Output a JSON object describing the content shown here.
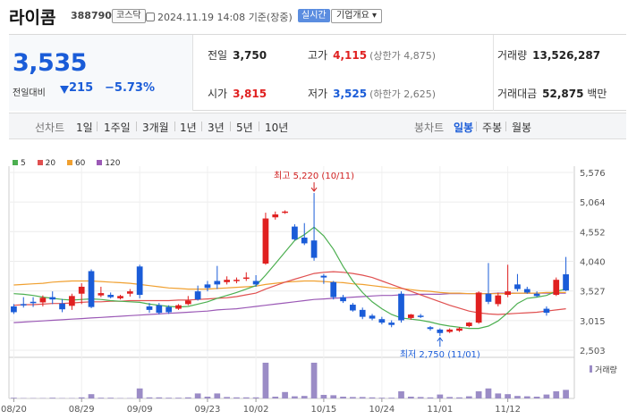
{
  "header": {
    "title": "라이콤",
    "code": "388790",
    "market": "코스닥",
    "datetime": "2024.11.19 14:08",
    "basis": "기준(장중)",
    "realtime_label": "실시간",
    "overview_label": "기업개요 ▾"
  },
  "quote": {
    "price": "3,535",
    "change_label": "전일대비",
    "change": "215",
    "change_rate": "−5.73%",
    "prev_close_label": "전일",
    "prev_close": "3,750",
    "high_label": "고가",
    "high": "4,115",
    "upper_limit": "(상한가 4,875)",
    "volume_label": "거래량",
    "volume": "13,526,287",
    "open_label": "시가",
    "open": "3,815",
    "low_label": "저가",
    "low": "3,525",
    "lower_limit": "(하한가 2,625)",
    "amount_label": "거래대금",
    "amount": "52,875",
    "amount_unit": "백만"
  },
  "period_bar": {
    "line_chart_label": "선차트",
    "line_periods": [
      "1일",
      "1주일",
      "3개월",
      "1년",
      "3년",
      "5년",
      "10년"
    ],
    "candle_chart_label": "봉차트",
    "candle_periods": [
      "일봉",
      "주봉",
      "월봉"
    ],
    "active_candle_period": "일봉"
  },
  "colors": {
    "up": "#e02020",
    "down": "#1a5cd8",
    "ma5": "#4caf50",
    "ma20": "#e05050",
    "ma60": "#f0a030",
    "ma120": "#9b59b6",
    "volume": "#9b8cc6"
  },
  "chart_data": {
    "type": "candlestick",
    "legend": [
      "5",
      "20",
      "60",
      "120"
    ],
    "y_ticks": [
      5576,
      5064,
      4552,
      4040,
      3527,
      3015,
      2503
    ],
    "y_tick_labels": [
      "5,576",
      "5,064",
      "4,552",
      "4,040",
      "3,527",
      "3,015",
      "2,503"
    ],
    "ylim": [
      2503,
      5576
    ],
    "x_tick_labels": [
      "08/20",
      "08/29",
      "09/09",
      "09/23",
      "10/02",
      "10/15",
      "10/24",
      "11/01",
      "11/12"
    ],
    "x_tick_index": [
      0,
      7,
      13,
      20,
      25,
      32,
      38,
      44,
      51
    ],
    "high_annotation": "최고 5,220 (10/11)",
    "low_annotation": "최저 2,750 (11/01)",
    "volume_label": "거래량",
    "candles": [
      {
        "o": 3260,
        "c": 3160,
        "h": 3300,
        "l": 3130
      },
      {
        "o": 3300,
        "c": 3280,
        "h": 3420,
        "l": 3240
      },
      {
        "o": 3340,
        "c": 3320,
        "h": 3420,
        "l": 3250
      },
      {
        "o": 3330,
        "c": 3410,
        "h": 3450,
        "l": 3260
      },
      {
        "o": 3420,
        "c": 3380,
        "h": 3520,
        "l": 3300
      },
      {
        "o": 3310,
        "c": 3210,
        "h": 3390,
        "l": 3160
      },
      {
        "o": 3270,
        "c": 3440,
        "h": 3480,
        "l": 3200
      },
      {
        "o": 3480,
        "c": 3600,
        "h": 3660,
        "l": 3300
      },
      {
        "o": 3870,
        "c": 3250,
        "h": 3900,
        "l": 3230
      },
      {
        "o": 3450,
        "c": 3490,
        "h": 3600,
        "l": 3420
      },
      {
        "o": 3460,
        "c": 3420,
        "h": 3500,
        "l": 3400
      },
      {
        "o": 3400,
        "c": 3440,
        "h": 3460,
        "l": 3380
      },
      {
        "o": 3480,
        "c": 3520,
        "h": 3560,
        "l": 3430
      },
      {
        "o": 3950,
        "c": 3460,
        "h": 3980,
        "l": 3400
      },
      {
        "o": 3260,
        "c": 3200,
        "h": 3320,
        "l": 3150
      },
      {
        "o": 3280,
        "c": 3150,
        "h": 3320,
        "l": 3120
      },
      {
        "o": 3250,
        "c": 3160,
        "h": 3280,
        "l": 3130
      },
      {
        "o": 3220,
        "c": 3280,
        "h": 3300,
        "l": 3200
      },
      {
        "o": 3300,
        "c": 3360,
        "h": 3440,
        "l": 3280
      },
      {
        "o": 3520,
        "c": 3380,
        "h": 3620,
        "l": 3360
      },
      {
        "o": 3640,
        "c": 3580,
        "h": 3700,
        "l": 3520
      },
      {
        "o": 3700,
        "c": 3640,
        "h": 3960,
        "l": 3560
      },
      {
        "o": 3680,
        "c": 3720,
        "h": 3780,
        "l": 3640
      },
      {
        "o": 3700,
        "c": 3720,
        "h": 3760,
        "l": 3660
      },
      {
        "o": 3740,
        "c": 3760,
        "h": 3850,
        "l": 3700
      },
      {
        "o": 3700,
        "c": 3640,
        "h": 3800,
        "l": 3600
      },
      {
        "o": 4000,
        "c": 4780,
        "h": 4880,
        "l": 3980
      },
      {
        "o": 4800,
        "c": 4850,
        "h": 4900,
        "l": 4760
      },
      {
        "o": 4880,
        "c": 4900,
        "h": 4920,
        "l": 4860
      },
      {
        "o": 4640,
        "c": 4420,
        "h": 4680,
        "l": 4400
      },
      {
        "o": 4450,
        "c": 4350,
        "h": 4700,
        "l": 4320
      },
      {
        "o": 4400,
        "c": 4100,
        "h": 5220,
        "l": 4050
      },
      {
        "o": 3790,
        "c": 3760,
        "h": 3820,
        "l": 3650
      },
      {
        "o": 3680,
        "c": 3420,
        "h": 3700,
        "l": 3380
      },
      {
        "o": 3420,
        "c": 3350,
        "h": 3460,
        "l": 3320
      },
      {
        "o": 3290,
        "c": 3190,
        "h": 3320,
        "l": 3170
      },
      {
        "o": 3200,
        "c": 3080,
        "h": 3240,
        "l": 3040
      },
      {
        "o": 3100,
        "c": 3050,
        "h": 3130,
        "l": 3020
      },
      {
        "o": 3040,
        "c": 2980,
        "h": 3080,
        "l": 2950
      },
      {
        "o": 2980,
        "c": 2940,
        "h": 3020,
        "l": 2900
      },
      {
        "o": 3480,
        "c": 3020,
        "h": 3520,
        "l": 2980
      },
      {
        "o": 3060,
        "c": 3120,
        "h": 3130,
        "l": 3030
      },
      {
        "o": 3100,
        "c": 3080,
        "h": 3130,
        "l": 3060
      },
      {
        "o": 2900,
        "c": 2870,
        "h": 2920,
        "l": 2840
      },
      {
        "o": 2860,
        "c": 2800,
        "h": 2880,
        "l": 2750
      },
      {
        "o": 2820,
        "c": 2860,
        "h": 2880,
        "l": 2800
      },
      {
        "o": 2840,
        "c": 2880,
        "h": 2900,
        "l": 2820
      },
      {
        "o": 2920,
        "c": 2980,
        "h": 2990,
        "l": 2900
      },
      {
        "o": 2980,
        "c": 3500,
        "h": 3520,
        "l": 2960
      },
      {
        "o": 3480,
        "c": 3340,
        "h": 4010,
        "l": 3300
      },
      {
        "o": 3300,
        "c": 3450,
        "h": 3500,
        "l": 3260
      },
      {
        "o": 3460,
        "c": 3520,
        "h": 3980,
        "l": 3420
      },
      {
        "o": 3640,
        "c": 3560,
        "h": 3820,
        "l": 3520
      },
      {
        "o": 3560,
        "c": 3500,
        "h": 3600,
        "l": 3480
      },
      {
        "o": 3480,
        "c": 3440,
        "h": 3520,
        "l": 3420
      },
      {
        "o": 3220,
        "c": 3150,
        "h": 3260,
        "l": 3100
      },
      {
        "o": 3460,
        "c": 3720,
        "h": 3760,
        "l": 3440
      },
      {
        "o": 3815,
        "c": 3535,
        "h": 4115,
        "l": 3525
      }
    ],
    "volumes": [
      0.02,
      0.01,
      0.01,
      0.01,
      0.02,
      0.01,
      0.01,
      0.03,
      0.12,
      0.02,
      0.02,
      0.01,
      0.01,
      0.28,
      0.03,
      0.03,
      0.02,
      0.02,
      0.03,
      0.14,
      0.05,
      0.14,
      0.04,
      0.03,
      0.03,
      0.03,
      1.0,
      0.05,
      0.18,
      0.06,
      0.07,
      1.0,
      0.1,
      0.09,
      0.05,
      0.04,
      0.04,
      0.03,
      0.02,
      0.02,
      0.2,
      0.05,
      0.04,
      0.03,
      0.11,
      0.04,
      0.03,
      0.06,
      0.2,
      0.28,
      0.14,
      0.12,
      0.07,
      0.06,
      0.05,
      0.11,
      0.2,
      0.24
    ],
    "ma5": [
      3480,
      3470,
      3450,
      3420,
      3400,
      3380,
      3370,
      3380,
      3390,
      3380,
      3360,
      3350,
      3340,
      3330,
      3300,
      3280,
      3260,
      3250,
      3260,
      3300,
      3340,
      3400,
      3450,
      3500,
      3560,
      3620,
      3800,
      4000,
      4200,
      4400,
      4500,
      4630,
      4480,
      4250,
      3950,
      3700,
      3500,
      3340,
      3220,
      3120,
      3060,
      3040,
      3020,
      2990,
      2950,
      2920,
      2900,
      2880,
      2880,
      2920,
      3010,
      3150,
      3310,
      3400,
      3420,
      3450,
      3520,
      3560
    ],
    "ma20": [
      3280,
      3290,
      3290,
      3300,
      3310,
      3310,
      3320,
      3330,
      3340,
      3340,
      3350,
      3350,
      3360,
      3360,
      3360,
      3360,
      3360,
      3370,
      3370,
      3380,
      3390,
      3400,
      3410,
      3430,
      3460,
      3490,
      3560,
      3620,
      3680,
      3730,
      3780,
      3830,
      3850,
      3860,
      3850,
      3830,
      3800,
      3760,
      3700,
      3640,
      3580,
      3520,
      3460,
      3400,
      3340,
      3280,
      3230,
      3180,
      3150,
      3130,
      3120,
      3130,
      3140,
      3150,
      3160,
      3180,
      3200,
      3220
    ],
    "ma60": [
      3630,
      3640,
      3650,
      3660,
      3680,
      3690,
      3700,
      3700,
      3700,
      3690,
      3680,
      3670,
      3660,
      3640,
      3620,
      3600,
      3580,
      3570,
      3560,
      3560,
      3560,
      3570,
      3580,
      3590,
      3600,
      3610,
      3640,
      3660,
      3680,
      3690,
      3700,
      3700,
      3690,
      3680,
      3670,
      3650,
      3640,
      3620,
      3600,
      3580,
      3570,
      3550,
      3530,
      3520,
      3500,
      3490,
      3490,
      3480,
      3480,
      3480,
      3480,
      3480,
      3490,
      3490,
      3490,
      3500,
      3500,
      3500
    ],
    "ma120": [
      2980,
      2990,
      3000,
      3010,
      3020,
      3030,
      3040,
      3050,
      3060,
      3070,
      3080,
      3090,
      3100,
      3110,
      3120,
      3130,
      3140,
      3150,
      3160,
      3170,
      3180,
      3200,
      3210,
      3220,
      3240,
      3260,
      3280,
      3300,
      3320,
      3340,
      3360,
      3380,
      3390,
      3400,
      3410,
      3420,
      3430,
      3440,
      3450,
      3450,
      3460,
      3460,
      3470,
      3470,
      3470,
      3480,
      3480,
      3480,
      3480,
      3480,
      3490,
      3490,
      3490,
      3490,
      3490,
      3490,
      3490,
      3490
    ]
  }
}
